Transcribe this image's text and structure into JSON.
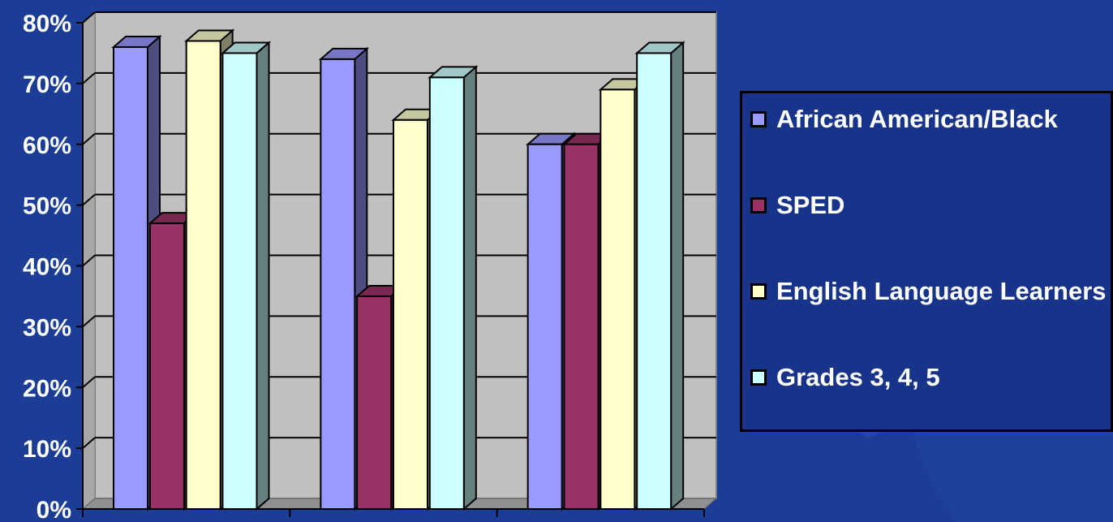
{
  "chart_data": {
    "type": "bar",
    "style": "3d-clustered-column",
    "categories": [
      "",
      "",
      ""
    ],
    "series": [
      {
        "name": "African American/Black",
        "color": "#9999ff",
        "values": [
          76,
          74,
          60
        ]
      },
      {
        "name": "SPED",
        "color": "#993366",
        "values": [
          47,
          35,
          60
        ]
      },
      {
        "name": "English Language Learners",
        "color": "#ffffcc",
        "values": [
          77,
          64,
          69
        ]
      },
      {
        "name": "Grades 3, 4, 5",
        "color": "#ccffff",
        "values": [
          75,
          71,
          75
        ]
      }
    ],
    "y_ticks": [
      "0%",
      "10%",
      "20%",
      "30%",
      "40%",
      "50%",
      "60%",
      "70%",
      "80%"
    ],
    "ylim": [
      0,
      80
    ],
    "y_unit": "%",
    "grid": true,
    "legend_position": "right",
    "wall_color": "#c0c0c0",
    "background_color": "#1b3d96"
  }
}
